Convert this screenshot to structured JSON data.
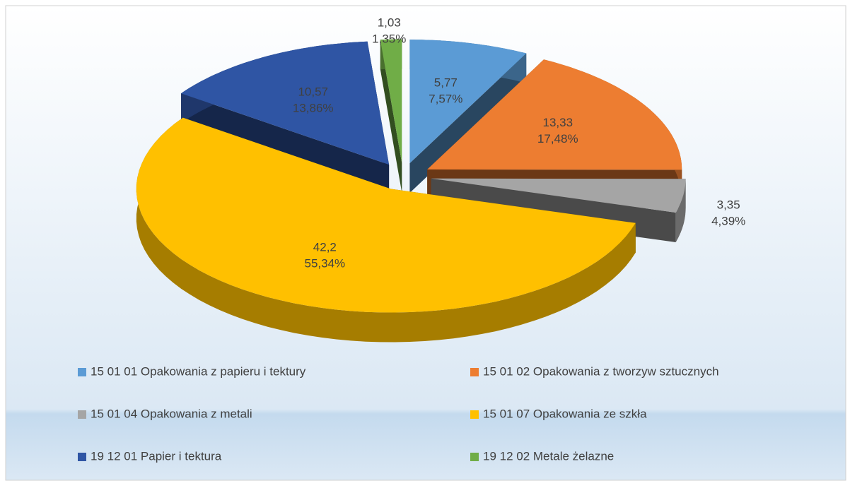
{
  "chart_data": {
    "type": "pie3d",
    "categories": [
      "15 01 01 Opakowania z papieru i tektury",
      "15 01 02 Opakowania z tworzyw sztucznych",
      "15 01 04 Opakowania z metali",
      "15 01 07 Opakowania ze szkła",
      "19 12 01 Papier i tektura",
      "19 12 02 Metale żelazne"
    ],
    "values": [
      5.77,
      13.33,
      3.35,
      42.2,
      10.57,
      1.03
    ],
    "value_labels": [
      "5,77",
      "13,33",
      "3,35",
      "42,2",
      "10,57",
      "1,03"
    ],
    "percent_labels": [
      "7,57%",
      "17,48%",
      "4,39%",
      "55,34%",
      "13,86%",
      "1,35%"
    ],
    "colors": [
      "#5b9bd5",
      "#ed7d31",
      "#a5a5a5",
      "#ffc000",
      "#2f55a4",
      "#70ad47"
    ],
    "legend": "bottom"
  }
}
